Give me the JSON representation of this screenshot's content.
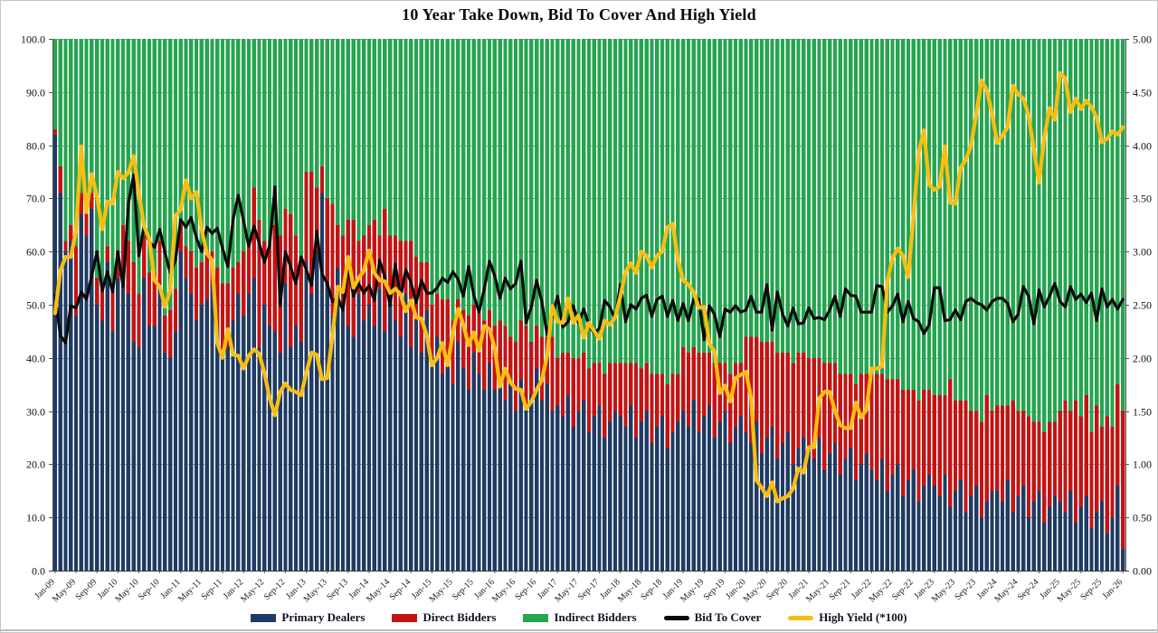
{
  "title": "10 Year Take Down, Bid To Cover And High Yield",
  "colors": {
    "primary_dealers": "#1F3B63",
    "direct_bidders": "#C31414",
    "indirect_bidders": "#26A44F",
    "bid_to_cover": "#0A0A0A",
    "high_yield": "#F8BE15",
    "gridline": "#98A0A8",
    "axis": "#555555"
  },
  "chart_data": {
    "type": "combo (stacked bar + line)",
    "title": "10 Year Take Down, Bid To Cover And High Yield",
    "left_axis": {
      "min": 0,
      "max": 100,
      "step": 10,
      "tick_labels": [
        "100.0",
        "90.0",
        "80.0",
        "70.0",
        "60.0",
        "50.0",
        "40.0",
        "30.0",
        "20.0",
        "10.0",
        "0.0"
      ]
    },
    "right_axis": {
      "min": 0,
      "max": 5,
      "step": 0.5,
      "tick_labels": [
        "5.00",
        "4.50",
        "4.00",
        "3.50",
        "3.00",
        "2.50",
        "2.00",
        "1.50",
        "1.00",
        "0.50",
        "0.00"
      ]
    },
    "x_tick_labels": [
      "Jan-09",
      "May-09",
      "Sep-09",
      "Jan-10",
      "May-10",
      "Sep-10",
      "Jan-11",
      "May-11",
      "Sep-11",
      "Jan-12",
      "May-12",
      "Sep-12",
      "Jan-13",
      "May-13",
      "Sep-13",
      "Jan-14",
      "May-14",
      "Sep-14",
      "Jan-15",
      "May-15",
      "Sep-15",
      "Jan-16",
      "May-16",
      "Sep-16",
      "Jan-17",
      "May-17",
      "Sep-17",
      "Jan-18",
      "May-18",
      "Sep-18",
      "Jan-19",
      "May-19",
      "Sep-19",
      "Jan-20",
      "May-20",
      "Sep-20",
      "Jan-21",
      "May-21",
      "Sep-21",
      "Jan-22",
      "May-22",
      "Sep-22",
      "Jan-23",
      "May-23",
      "Sep-23",
      "Jan-24",
      "May-24",
      "Sep-24",
      "Jan-25",
      "May-25",
      "Sep-25",
      "Jan-26"
    ],
    "x_tick_every_n_bars": 4,
    "note": "Monthly 10Y auctions Jan-09 through Jan-26; bars stack to 100%: indirect_bidders_pct = 100 - primary_dealers_pct - direct_bidders_pct",
    "series": {
      "primary_dealers_pct": [
        82,
        71,
        60,
        62,
        48,
        67,
        63,
        68,
        50,
        47,
        58,
        45,
        55,
        57,
        52,
        43,
        42,
        55,
        46,
        46,
        54,
        41,
        40,
        45,
        60,
        55,
        52,
        47,
        50,
        51,
        54,
        45,
        40,
        42,
        47,
        52,
        48,
        52,
        55,
        42,
        50,
        46,
        45,
        41,
        54,
        42,
        46,
        43,
        58,
        52,
        60,
        71,
        54,
        48,
        57,
        50,
        46,
        44,
        52,
        47,
        50,
        46,
        53,
        45,
        50,
        47,
        44,
        52,
        42,
        47,
        41,
        49,
        40,
        44,
        37,
        41,
        35,
        43,
        38,
        34,
        41,
        37,
        34,
        39,
        34,
        37,
        32,
        35,
        30,
        36,
        31,
        33,
        38,
        32,
        35,
        30,
        31,
        29,
        33,
        27,
        30,
        32,
        26,
        29,
        31,
        25,
        28,
        30,
        29,
        27,
        31,
        25,
        28,
        30,
        24,
        27,
        29,
        23,
        26,
        28,
        30,
        27,
        32,
        26,
        29,
        31,
        25,
        28,
        30,
        24,
        27,
        29,
        26,
        24,
        28,
        22,
        25,
        27,
        21,
        24,
        26,
        20,
        23,
        25,
        23,
        21,
        25,
        19,
        22,
        24,
        18,
        21,
        23,
        17,
        20,
        22,
        19,
        17,
        21,
        15,
        18,
        20,
        14,
        17,
        19,
        13,
        16,
        18,
        16,
        14,
        18,
        12,
        15,
        17,
        11,
        14,
        16,
        10,
        13,
        15,
        15,
        13,
        17,
        11,
        14,
        16,
        10,
        13,
        15,
        9,
        12,
        14,
        13,
        11,
        15,
        9,
        12,
        14,
        8,
        11,
        13,
        7,
        10,
        16,
        4
      ],
      "direct_bidders_pct": [
        1,
        5,
        2,
        3,
        13,
        4,
        7,
        3,
        5,
        7,
        3,
        9,
        5,
        8,
        10,
        15,
        10,
        8,
        10,
        10,
        8,
        7,
        9,
        8,
        5,
        6,
        8,
        10,
        8,
        9,
        6,
        12,
        14,
        12,
        10,
        6,
        12,
        10,
        17,
        24,
        12,
        15,
        20,
        22,
        14,
        25,
        17,
        15,
        17,
        23,
        12,
        5,
        16,
        21,
        8,
        13,
        20,
        22,
        10,
        16,
        15,
        20,
        10,
        23,
        13,
        16,
        18,
        10,
        20,
        12,
        17,
        9,
        10,
        8,
        14,
        10,
        12,
        8,
        11,
        14,
        9,
        12,
        13,
        10,
        12,
        10,
        14,
        9,
        13,
        11,
        15,
        10,
        8,
        12,
        9,
        14,
        9,
        12,
        8,
        13,
        10,
        9,
        12,
        10,
        8,
        12,
        11,
        9,
        10,
        12,
        8,
        14,
        10,
        9,
        13,
        10,
        8,
        12,
        11,
        9,
        12,
        14,
        10,
        15,
        12,
        10,
        14,
        11,
        9,
        13,
        12,
        10,
        18,
        20,
        16,
        21,
        18,
        16,
        20,
        17,
        15,
        19,
        18,
        16,
        17,
        19,
        15,
        20,
        17,
        15,
        19,
        16,
        14,
        18,
        17,
        15,
        18,
        20,
        16,
        21,
        18,
        16,
        20,
        17,
        15,
        19,
        18,
        16,
        17,
        19,
        15,
        24,
        17,
        15,
        21,
        16,
        14,
        18,
        20,
        15,
        16,
        18,
        14,
        21,
        16,
        14,
        19,
        15,
        13,
        17,
        16,
        14,
        17,
        21,
        15,
        23,
        17,
        19,
        18,
        20,
        14,
        22,
        17,
        19,
        26
      ],
      "bid_to_cover": [
        2.59,
        2.21,
        2.14,
        2.49,
        2.47,
        2.62,
        2.55,
        2.77,
        3.0,
        2.63,
        2.81,
        2.62,
        3.0,
        2.67,
        3.45,
        3.72,
        2.96,
        3.24,
        3.09,
        3.04,
        3.21,
        2.99,
        2.8,
        2.92,
        3.3,
        3.23,
        3.32,
        3.13,
        3.0,
        3.23,
        3.17,
        3.22,
        3.03,
        2.86,
        3.3,
        3.53,
        3.29,
        3.05,
        3.24,
        3.08,
        2.9,
        3.06,
        3.61,
        2.49,
        3.0,
        2.86,
        2.7,
        2.95,
        2.83,
        2.68,
        3.19,
        2.79,
        2.7,
        2.53,
        2.57,
        2.45,
        2.86,
        2.58,
        2.7,
        2.61,
        2.68,
        2.54,
        2.92,
        2.76,
        2.49,
        2.88,
        2.57,
        2.83,
        2.71,
        2.52,
        2.73,
        2.61,
        2.61,
        2.66,
        2.75,
        2.71,
        2.81,
        2.74,
        2.58,
        2.86,
        2.59,
        2.43,
        2.65,
        2.91,
        2.77,
        2.56,
        2.75,
        2.65,
        2.7,
        2.91,
        2.33,
        2.48,
        2.73,
        2.53,
        2.22,
        2.39,
        2.58,
        2.29,
        2.34,
        2.49,
        2.33,
        2.46,
        2.31,
        2.23,
        2.28,
        2.54,
        2.48,
        2.37,
        2.69,
        2.34,
        2.5,
        2.46,
        2.56,
        2.59,
        2.39,
        2.55,
        2.58,
        2.39,
        2.54,
        2.35,
        2.51,
        2.35,
        2.55,
        2.55,
        2.17,
        2.49,
        2.41,
        2.2,
        2.46,
        2.43,
        2.49,
        2.43,
        2.45,
        2.58,
        2.43,
        2.43,
        2.69,
        2.26,
        2.62,
        2.41,
        2.3,
        2.47,
        2.32,
        2.33,
        2.47,
        2.37,
        2.38,
        2.36,
        2.45,
        2.58,
        2.39,
        2.65,
        2.59,
        2.58,
        2.43,
        2.43,
        2.43,
        2.68,
        2.67,
        2.43,
        2.49,
        2.6,
        2.34,
        2.53,
        2.37,
        2.34,
        2.23,
        2.31,
        2.66,
        2.66,
        2.35,
        2.36,
        2.45,
        2.36,
        2.53,
        2.56,
        2.52,
        2.5,
        2.45,
        2.53,
        2.56,
        2.56,
        2.51,
        2.34,
        2.41,
        2.67,
        2.58,
        2.32,
        2.64,
        2.48,
        2.58,
        2.7,
        2.53,
        2.48,
        2.67,
        2.55,
        2.6,
        2.52,
        2.61,
        2.35,
        2.65,
        2.48,
        2.55,
        2.46,
        2.55
      ],
      "high_yield_x100": [
        2.42,
        2.82,
        2.95,
        2.95,
        3.19,
        3.99,
        3.37,
        3.73,
        3.52,
        3.21,
        3.47,
        3.45,
        3.75,
        3.69,
        3.74,
        3.9,
        3.55,
        3.24,
        3.12,
        2.73,
        2.67,
        2.48,
        2.64,
        3.34,
        3.39,
        3.67,
        3.5,
        3.56,
        3.21,
        2.98,
        2.92,
        2.14,
        2.0,
        2.27,
        2.03,
        2.02,
        1.9,
        2.02,
        2.08,
        2.04,
        1.86,
        1.62,
        1.46,
        1.68,
        1.76,
        1.7,
        1.68,
        1.65,
        1.86,
        2.05,
        2.03,
        1.8,
        1.81,
        2.21,
        2.67,
        2.62,
        2.95,
        2.66,
        2.75,
        2.82,
        3.01,
        2.8,
        2.73,
        2.72,
        2.61,
        2.65,
        2.6,
        2.44,
        2.54,
        2.38,
        2.37,
        2.21,
        1.93,
        2.0,
        2.14,
        1.93,
        2.24,
        2.46,
        2.31,
        2.12,
        2.24,
        2.07,
        2.3,
        2.27,
        2.09,
        1.73,
        1.9,
        1.77,
        1.71,
        1.7,
        1.52,
        1.59,
        1.7,
        1.79,
        2.02,
        2.49,
        2.34,
        2.33,
        2.56,
        2.33,
        2.4,
        2.19,
        2.33,
        2.25,
        2.18,
        2.35,
        2.31,
        2.38,
        2.58,
        2.81,
        2.89,
        2.8,
        3.0,
        2.96,
        2.85,
        2.96,
        3.0,
        3.23,
        3.26,
        2.92,
        2.73,
        2.69,
        2.62,
        2.47,
        2.48,
        2.13,
        2.06,
        1.67,
        1.74,
        1.59,
        1.81,
        1.84,
        1.87,
        1.62,
        0.85,
        0.78,
        0.7,
        0.83,
        0.65,
        0.68,
        0.7,
        0.77,
        0.96,
        0.92,
        1.16,
        1.16,
        1.62,
        1.68,
        1.68,
        1.5,
        1.37,
        1.34,
        1.34,
        1.58,
        1.44,
        1.51,
        1.9,
        1.9,
        1.92,
        2.72,
        2.94,
        3.03,
        2.96,
        2.76,
        3.33,
        3.93,
        4.14,
        3.63,
        3.58,
        3.61,
        3.99,
        3.46,
        3.45,
        3.79,
        3.86,
        4.0,
        4.29,
        4.61,
        4.52,
        4.3,
        4.02,
        4.09,
        4.17,
        4.56,
        4.48,
        4.44,
        4.28,
        3.96,
        3.65,
        4.07,
        4.35,
        4.24,
        4.68,
        4.63,
        4.31,
        4.44,
        4.34,
        4.42,
        4.36,
        4.26,
        4.03,
        4.06,
        4.13,
        4.1,
        4.17
      ]
    },
    "legend": [
      {
        "label": "Primary Dealers",
        "color": "#1F3B63",
        "type": "bar"
      },
      {
        "label": "Direct Bidders",
        "color": "#C31414",
        "type": "bar"
      },
      {
        "label": "Indirect Bidders",
        "color": "#26A44F",
        "type": "bar"
      },
      {
        "label": "Bid To Cover",
        "color": "#0A0A0A",
        "type": "line"
      },
      {
        "label": "High Yield (*100)",
        "color": "#F8BE15",
        "type": "line"
      }
    ],
    "grid": "horizontal dashed, every 10 (left axis)",
    "legend_position": "bottom center"
  }
}
